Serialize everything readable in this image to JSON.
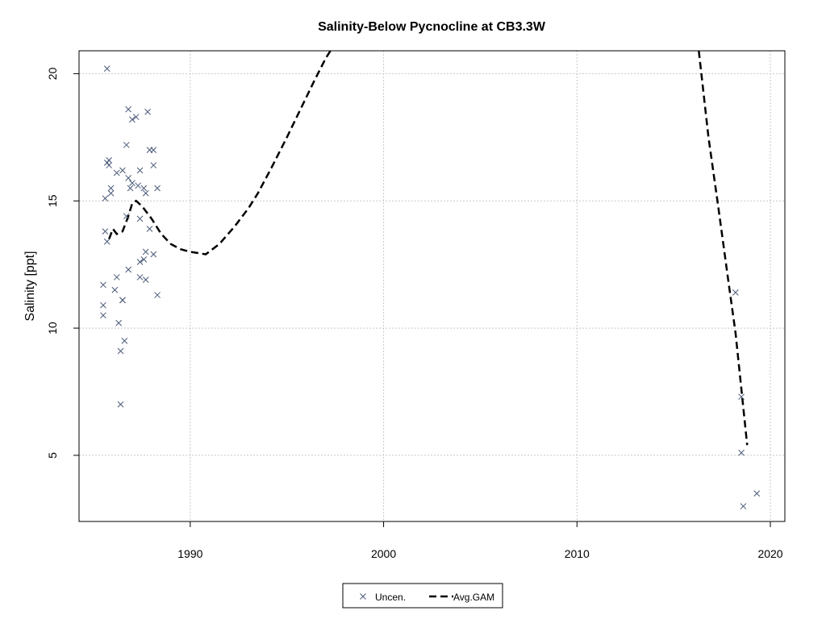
{
  "chart_data": {
    "type": "scatter",
    "title": "Salinity-Below Pycnocline at CB3.3W",
    "xlabel": "",
    "ylabel": "Salinity [ppt]",
    "xlim": [
      1984.25,
      2020.75
    ],
    "ylim": [
      2.4,
      20.9
    ],
    "x_ticks": [
      1990,
      2000,
      2010,
      2020
    ],
    "y_ticks": [
      5,
      10,
      15,
      20
    ],
    "grid": true,
    "legend_position": "bottom-center",
    "colors": {
      "points": "#4a5a78",
      "line": "#000000",
      "grid": "#c8c8c8"
    },
    "series": [
      {
        "name": "Uncen.",
        "kind": "points",
        "marker": "x",
        "points": [
          [
            1985.7,
            20.2
          ],
          [
            1985.7,
            16.5
          ],
          [
            1985.8,
            16.4
          ],
          [
            1985.8,
            16.6
          ],
          [
            1985.9,
            15.5
          ],
          [
            1985.9,
            15.3
          ],
          [
            1985.6,
            15.1
          ],
          [
            1985.6,
            13.8
          ],
          [
            1985.7,
            13.4
          ],
          [
            1985.5,
            11.7
          ],
          [
            1985.5,
            10.9
          ],
          [
            1985.5,
            10.5
          ],
          [
            1986.1,
            11.5
          ],
          [
            1986.2,
            12.0
          ],
          [
            1986.3,
            10.2
          ],
          [
            1986.5,
            11.1
          ],
          [
            1986.6,
            9.5
          ],
          [
            1986.4,
            9.1
          ],
          [
            1986.4,
            7.0
          ],
          [
            1986.2,
            16.1
          ],
          [
            1986.5,
            16.2
          ],
          [
            1986.7,
            17.2
          ],
          [
            1986.8,
            18.6
          ],
          [
            1987.0,
            18.2
          ],
          [
            1987.2,
            18.3
          ],
          [
            1986.8,
            15.9
          ],
          [
            1987.0,
            15.7
          ],
          [
            1986.9,
            15.5
          ],
          [
            1987.3,
            15.6
          ],
          [
            1987.4,
            16.2
          ],
          [
            1987.6,
            15.5
          ],
          [
            1987.7,
            15.3
          ],
          [
            1987.4,
            14.3
          ],
          [
            1987.7,
            13.0
          ],
          [
            1987.9,
            13.9
          ],
          [
            1987.6,
            12.7
          ],
          [
            1987.4,
            12.6
          ],
          [
            1987.4,
            12.0
          ],
          [
            1987.7,
            11.9
          ],
          [
            1987.8,
            18.5
          ],
          [
            1987.9,
            17.0
          ],
          [
            1988.1,
            17.0
          ],
          [
            1988.1,
            16.4
          ],
          [
            1988.3,
            15.5
          ],
          [
            1988.1,
            12.9
          ],
          [
            1988.3,
            11.3
          ],
          [
            1986.8,
            12.3
          ],
          [
            1986.7,
            14.4
          ],
          [
            1986.5,
            11.1
          ],
          [
            2018.2,
            11.4
          ],
          [
            2018.5,
            7.3
          ],
          [
            2018.5,
            5.1
          ],
          [
            2018.6,
            3.0
          ],
          [
            2019.3,
            3.5
          ]
        ]
      },
      {
        "name": "Avg.GAM",
        "kind": "line",
        "dash": "long-dash",
        "x": [
          1985.8,
          1986.0,
          1986.2,
          1986.5,
          1986.8,
          1987.0,
          1987.2,
          1987.5,
          1988.0,
          1988.5,
          1989.0,
          1989.5,
          1990.0,
          1990.8,
          1991.5,
          1992.3,
          1993.0,
          1993.5,
          1994.2,
          1995.0,
          1995.7,
          1996.4,
          1997.0,
          1997.5,
          2016.3,
          2016.8,
          2017.3,
          2017.8,
          2018.2,
          2018.5,
          2018.8
        ],
        "y": [
          13.5,
          13.9,
          13.7,
          13.8,
          14.4,
          14.9,
          15.0,
          14.8,
          14.3,
          13.7,
          13.3,
          13.1,
          13.0,
          12.9,
          13.3,
          14.0,
          14.7,
          15.3,
          16.3,
          17.5,
          18.6,
          19.7,
          20.6,
          21.2,
          20.9,
          17.5,
          14.8,
          12.0,
          9.8,
          7.6,
          5.4
        ]
      }
    ]
  }
}
